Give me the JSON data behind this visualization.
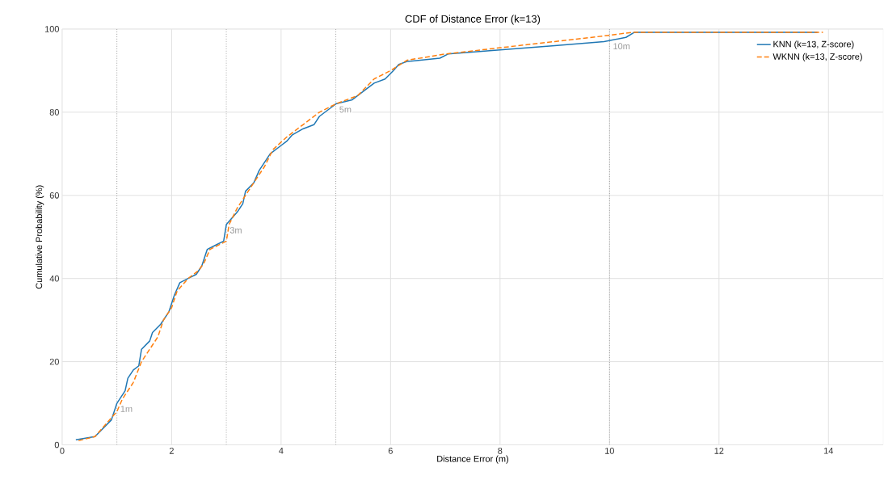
{
  "chart_data": {
    "type": "line",
    "title": "CDF of Distance Error (k=13)",
    "xlabel": "Distance Error (m)",
    "ylabel": "Cumulative Probability (%)",
    "xlim": [
      0,
      15
    ],
    "ylim": [
      0,
      100
    ],
    "xticks": [
      0,
      2,
      4,
      6,
      8,
      10,
      12,
      14
    ],
    "yticks": [
      0,
      20,
      40,
      60,
      80,
      100
    ],
    "grid": true,
    "legend": "top right",
    "marker": "none",
    "ref_lines": [
      {
        "axis": "x",
        "value": 1,
        "label": "1m",
        "color": "#999999",
        "line_style": "dotted"
      },
      {
        "axis": "x",
        "value": 3,
        "label": "3m",
        "color": "#999999",
        "line_style": "dotted"
      },
      {
        "axis": "x",
        "value": 5,
        "label": "5m",
        "color": "#999999",
        "line_style": "dotted"
      },
      {
        "axis": "x",
        "value": 10,
        "label": "10m",
        "color": "#999999",
        "line_style": "dotted"
      }
    ],
    "series": [
      {
        "name": "KNN (k=13, Z-score)",
        "color": "#1f77b4",
        "line_style": "solid",
        "x": [
          0.25,
          0.6,
          0.9,
          1.0,
          1.15,
          1.2,
          1.3,
          1.4,
          1.45,
          1.6,
          1.65,
          1.8,
          1.95,
          2.05,
          2.15,
          2.3,
          2.45,
          2.55,
          2.65,
          2.8,
          2.95,
          3.0,
          3.2,
          3.3,
          3.35,
          3.5,
          3.6,
          3.7,
          3.8,
          4.0,
          4.1,
          4.2,
          4.4,
          4.6,
          4.7,
          4.9,
          5.0,
          5.3,
          5.5,
          5.7,
          5.9,
          6.05,
          6.15,
          6.3,
          6.9,
          7.05,
          8.0,
          9.0,
          9.9,
          10.3,
          10.45,
          13.8
        ],
        "values": [
          1.2,
          2,
          6,
          10,
          13,
          16,
          18,
          19,
          23,
          25,
          27,
          29,
          32,
          36,
          39,
          40,
          41,
          43,
          47,
          48,
          49,
          53,
          56,
          58,
          61,
          63,
          66,
          68,
          70,
          72,
          73,
          74.5,
          76,
          77,
          79,
          81,
          82,
          83,
          85,
          87,
          88,
          90,
          91.5,
          92.2,
          93,
          94,
          95,
          96,
          97,
          98,
          99.2,
          99.2
        ]
      },
      {
        "name": "WKNN (k=13, Z-score)",
        "color": "#ff7f0e",
        "line_style": "dashed",
        "x": [
          0.3,
          0.6,
          0.8,
          1.0,
          1.1,
          1.3,
          1.45,
          1.6,
          1.75,
          1.85,
          2.0,
          2.1,
          2.3,
          2.5,
          2.6,
          2.7,
          3.0,
          3.05,
          3.2,
          3.35,
          3.5,
          3.7,
          3.85,
          4.1,
          4.4,
          4.7,
          5.0,
          5.4,
          5.7,
          6.0,
          6.3,
          7.0,
          8.0,
          9.0,
          10.0,
          10.4,
          13.9
        ],
        "values": [
          1,
          2,
          5,
          8,
          11,
          15,
          20,
          23,
          26,
          30,
          33,
          37,
          40,
          42,
          44,
          47,
          49,
          53,
          57,
          60,
          63,
          67,
          71,
          74,
          77,
          80,
          82,
          84,
          88,
          90,
          92.5,
          94,
          95.5,
          97,
          98.5,
          99.2,
          99.2
        ]
      }
    ]
  }
}
